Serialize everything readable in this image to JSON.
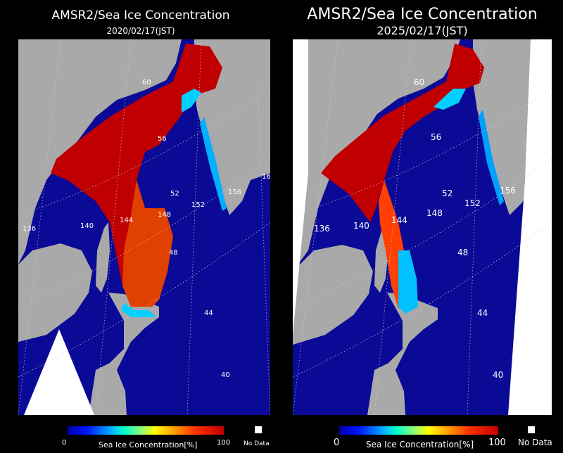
{
  "left": {
    "title": "AMSR2/Sea Ice Concentration",
    "date": "2020/02/17(JST)",
    "lat_labels": [
      "60",
      "56",
      "52",
      "48",
      "44",
      "40"
    ],
    "lon_labels": [
      "136",
      "140",
      "144",
      "148",
      "152",
      "156",
      "16"
    ]
  },
  "right": {
    "title": "AMSR2/Sea Ice Concentration",
    "date": "2025/02/17(JST)",
    "lat_labels": [
      "60",
      "56",
      "52",
      "48",
      "44",
      "40"
    ],
    "lon_labels": [
      "136",
      "140",
      "144",
      "148",
      "152",
      "156"
    ]
  },
  "legend": {
    "min": "0",
    "max": "100",
    "label": "Sea Ice Concentration[%]",
    "no_data": "No Data"
  },
  "colors": {
    "ocean": "#0a0a96",
    "land": "#a9a9a9",
    "no_data": "#ffffff",
    "ice_high": "#c00000",
    "ice_low": "#00d0ff"
  }
}
